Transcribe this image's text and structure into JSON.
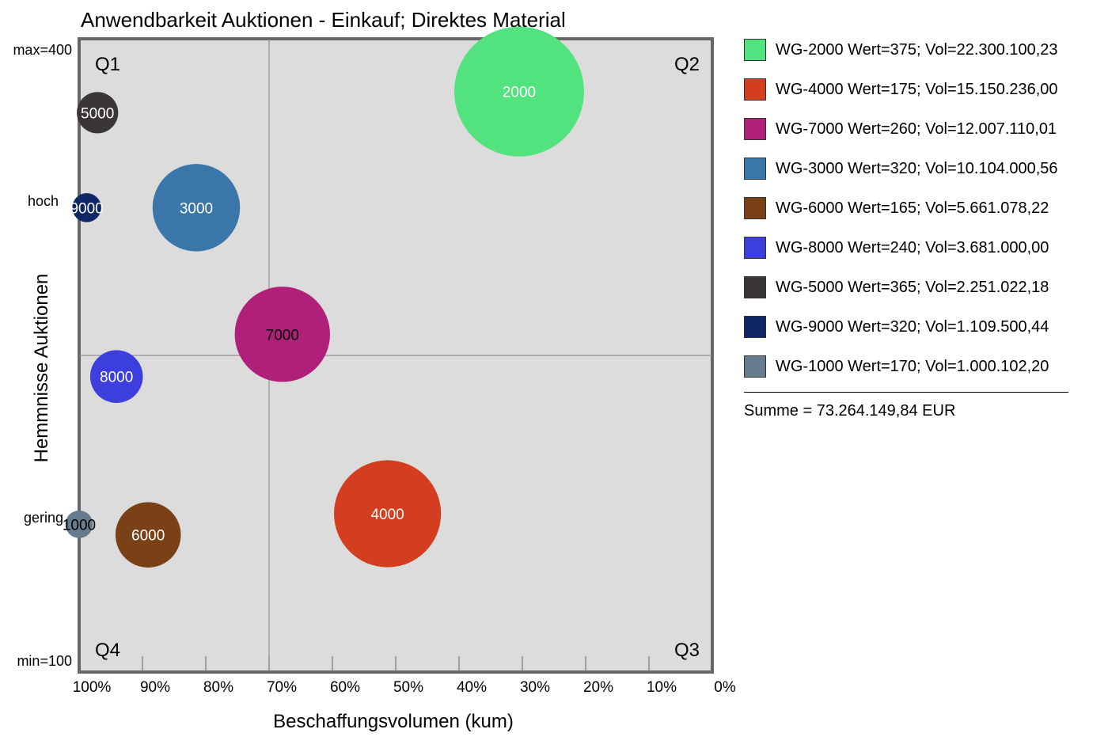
{
  "chart_data": {
    "type": "bubble",
    "title": "Anwendbarkeit Auktionen - Einkauf; Direktes Material",
    "xlabel": "Beschaffungsvolumen (kum)",
    "ylabel": "Hemmnisse Auktionen",
    "x_unit": "% (kum)",
    "x_axis_reversed": true,
    "xlim": [
      0,
      100
    ],
    "ylim": [
      100,
      400
    ],
    "x_ticks": [
      "100%",
      "90%",
      "80%",
      "70%",
      "60%",
      "50%",
      "40%",
      "30%",
      "20%",
      "10%",
      "0%"
    ],
    "y_tick_labels": [
      {
        "value": 400,
        "label": "max=400"
      },
      {
        "value": 325,
        "label": "hoch"
      },
      {
        "value": 175,
        "label": "gering"
      },
      {
        "value": 100,
        "label": "min=100"
      }
    ],
    "x_divider": 70,
    "y_divider": 250,
    "quadrants": [
      "Q1",
      "Q2",
      "Q3",
      "Q4"
    ],
    "grid": false,
    "legend_position": "right",
    "series": [
      {
        "id": "2000",
        "legend": "WG-2000 Wert=375; Vol=22.300.100,23",
        "color": "#52e27e",
        "label_color": "#ffffff",
        "x": 30.5,
        "y": 375,
        "volume": 22300100.23
      },
      {
        "id": "4000",
        "legend": "WG-4000 Wert=175; Vol=15.150.236,00",
        "color": "#d33d20",
        "label_color": "#ffffff",
        "x": 51.3,
        "y": 175,
        "volume": 15150236.0
      },
      {
        "id": "7000",
        "legend": "WG-7000 Wert=260; Vol=12.007.110,01",
        "color": "#b0207a",
        "label_color": "#000000",
        "x": 67.9,
        "y": 260,
        "volume": 12007110.01
      },
      {
        "id": "3000",
        "legend": "WG-3000 Wert=320; Vol=10.104.000,56",
        "color": "#3a76a9",
        "label_color": "#ffffff",
        "x": 81.5,
        "y": 320,
        "volume": 10104000.56
      },
      {
        "id": "6000",
        "legend": "WG-6000 Wert=165; Vol=5.661.078,22",
        "color": "#7b4116",
        "label_color": "#ffffff",
        "x": 89.1,
        "y": 165,
        "volume": 5661078.22
      },
      {
        "id": "8000",
        "legend": "WG-8000 Wert=240; Vol=3.681.000,00",
        "color": "#3d3fdc",
        "label_color": "#ffffff",
        "x": 94.1,
        "y": 240,
        "volume": 3681000.0
      },
      {
        "id": "5000",
        "legend": "WG-5000 Wert=365; Vol=2.251.022,18",
        "color": "#3a3538",
        "label_color": "#ffffff",
        "x": 97.1,
        "y": 365,
        "volume": 2251022.18
      },
      {
        "id": "9000",
        "legend": "WG-9000 Wert=320; Vol=1.109.500,44",
        "color": "#0f2766",
        "label_color": "#ffffff",
        "x": 98.8,
        "y": 320,
        "volume": 1109500.44
      },
      {
        "id": "1000",
        "legend": "WG-1000 Wert=170; Vol=1.000.102,20",
        "color": "#667b8d",
        "label_color": "#000000",
        "x": 100,
        "y": 170,
        "volume": 1000102.2
      }
    ],
    "sum_text": "Summe = 73.264.149,84 EUR"
  }
}
